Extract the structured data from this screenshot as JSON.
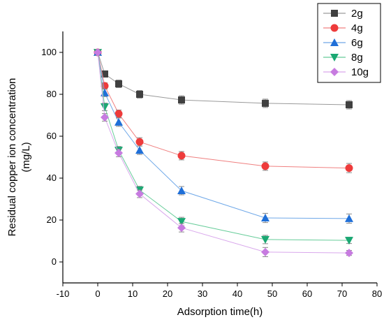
{
  "chart_data": {
    "type": "scatter",
    "xlabel": "Adsorption time(h)",
    "ylabel_line1": "Residual copper ion concentration",
    "ylabel_line2": "(mg/L)",
    "xlim": [
      -10,
      80
    ],
    "ylim": [
      -10,
      110
    ],
    "xticks": [
      -10,
      0,
      10,
      20,
      30,
      40,
      50,
      60,
      70,
      80
    ],
    "yticks": [
      0,
      20,
      40,
      60,
      80,
      100
    ],
    "grid": false,
    "legend_position": "top-right",
    "x": [
      0,
      2,
      6,
      12,
      24,
      48,
      72
    ],
    "series": [
      {
        "name": "2g",
        "color": "#404040",
        "line_color": "#9a9a9a",
        "marker": "square",
        "values": [
          100,
          89.7,
          85,
          80,
          77.3,
          75.7,
          75
        ],
        "errors": [
          1.5,
          1.5,
          1.8,
          1.8,
          2,
          2,
          2
        ]
      },
      {
        "name": "4g",
        "color": "#ee3b3b",
        "line_color": "#f08080",
        "marker": "circle",
        "values": [
          100,
          84,
          70.7,
          57.3,
          50.7,
          45.7,
          44.8
        ],
        "errors": [
          1.5,
          1.5,
          1.8,
          2,
          2,
          2,
          2.2
        ]
      },
      {
        "name": "6g",
        "color": "#1f6fd8",
        "line_color": "#6fa8e8",
        "marker": "triangle-up",
        "values": [
          100,
          80.7,
          66.7,
          53.3,
          34,
          21,
          20.7
        ],
        "errors": [
          1.5,
          1.8,
          2,
          2,
          2,
          2.2,
          2.2
        ]
      },
      {
        "name": "8g",
        "color": "#1aa873",
        "line_color": "#66cc99",
        "marker": "triangle-down",
        "values": [
          100,
          74,
          53.3,
          34.3,
          19.3,
          10.7,
          10.3
        ],
        "errors": [
          1.5,
          1.8,
          1.8,
          1.8,
          2,
          2,
          1.5
        ]
      },
      {
        "name": "10g",
        "color": "#c77be0",
        "line_color": "#d9a8ec",
        "marker": "diamond",
        "values": [
          100,
          69,
          52,
          32.5,
          16.3,
          4.7,
          4.3
        ],
        "errors": [
          1.5,
          1.8,
          1.8,
          1.8,
          2,
          2.2,
          1.2
        ]
      }
    ]
  }
}
